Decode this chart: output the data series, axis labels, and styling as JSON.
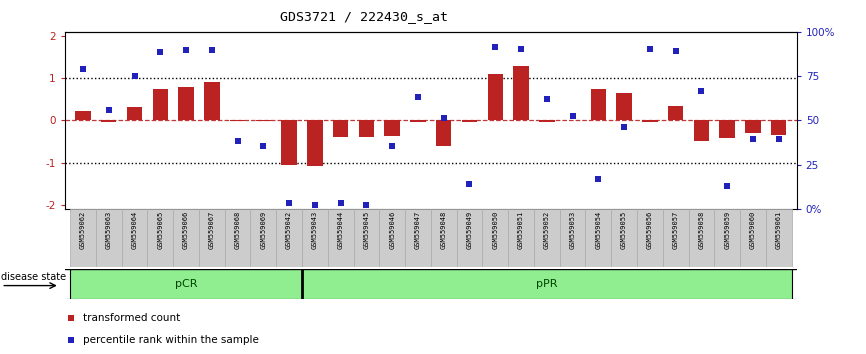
{
  "title": "GDS3721 / 222430_s_at",
  "samples": [
    "GSM559062",
    "GSM559063",
    "GSM559064",
    "GSM559065",
    "GSM559066",
    "GSM559067",
    "GSM559068",
    "GSM559069",
    "GSM559042",
    "GSM559043",
    "GSM559044",
    "GSM559045",
    "GSM559046",
    "GSM559047",
    "GSM559048",
    "GSM559049",
    "GSM559050",
    "GSM559051",
    "GSM559052",
    "GSM559053",
    "GSM559054",
    "GSM559055",
    "GSM559056",
    "GSM559057",
    "GSM559058",
    "GSM559059",
    "GSM559060",
    "GSM559061"
  ],
  "red_bars": [
    0.22,
    -0.04,
    0.32,
    0.75,
    0.78,
    0.92,
    -0.02,
    -0.02,
    -1.05,
    -1.08,
    -0.4,
    -0.4,
    -0.38,
    -0.04,
    -0.62,
    -0.04,
    1.1,
    1.3,
    -0.04,
    0.0,
    0.75,
    0.65,
    -0.04,
    0.35,
    -0.48,
    -0.42,
    -0.3,
    -0.35
  ],
  "blue_dots": [
    1.22,
    0.25,
    1.05,
    1.62,
    1.68,
    1.68,
    -0.5,
    -0.6,
    -1.95,
    -2.0,
    -1.95,
    -2.0,
    -0.6,
    0.55,
    0.05,
    -1.5,
    1.75,
    1.7,
    0.5,
    0.1,
    -1.4,
    -0.15,
    1.7,
    1.65,
    0.7,
    -1.55,
    -0.45,
    -0.45
  ],
  "pCR_count": 9,
  "bar_color": "#bb2222",
  "dot_color": "#2222bb",
  "bg": "#ffffff",
  "green_fill": "#90EE90",
  "green_edge": "#008800",
  "green_divider": "#22cc22",
  "ylim": [
    -2.1,
    2.1
  ],
  "yticks_left": [
    -2,
    -1,
    0,
    1,
    2
  ],
  "yticks_right": [
    0,
    25,
    50,
    75,
    100
  ],
  "right_labels": [
    "0%",
    "25",
    "50",
    "75",
    "100%"
  ],
  "xtick_box_color": "#cccccc",
  "xtick_box_edge": "#aaaaaa"
}
